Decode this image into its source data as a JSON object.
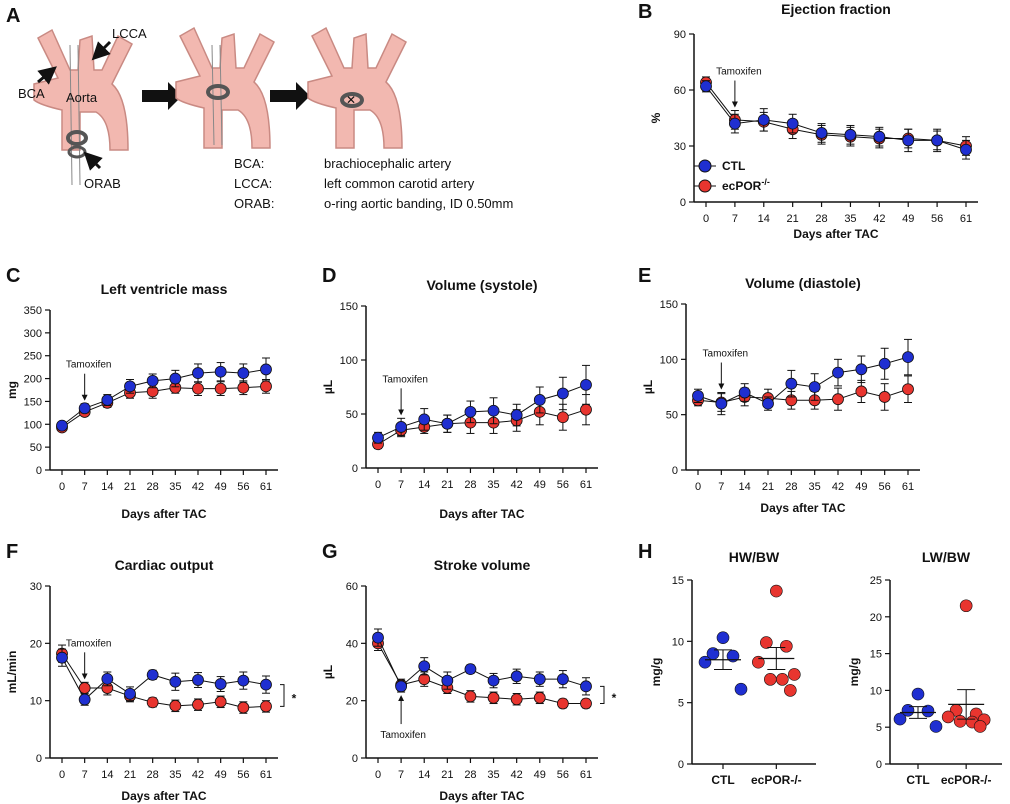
{
  "panel_letters": {
    "A": "A",
    "B": "B",
    "C": "C",
    "D": "D",
    "E": "E",
    "F": "F",
    "G": "G",
    "H": "H"
  },
  "colors": {
    "ctl": "#1f2fd1",
    "ecpor": "#e8352f",
    "ctl_light": "#2233cc",
    "ecpor_light": "#f07070",
    "artery": "#f2b8b0",
    "artery_stroke": "#c98a83"
  },
  "diagram": {
    "labels": {
      "lcca": "LCCA",
      "bca": "BCA",
      "aorta": "Aorta",
      "orab": "ORAB"
    },
    "abbreviations": [
      {
        "key": "BCA:",
        "value": "brachiocephalic artery"
      },
      {
        "key": "LCCA:",
        "value": "left common carotid artery"
      },
      {
        "key": "ORAB:",
        "value": "o-ring aortic banding, ID 0.50mm"
      }
    ]
  },
  "legend": {
    "ctl": "CTL",
    "ecpor_base": "ecPOR",
    "ecpor_sup": "-/-"
  },
  "chart_data": [
    {
      "id": "B",
      "type": "line",
      "title": "Ejection fraction",
      "ylabel": "%",
      "xlabel": "Days after TAC",
      "ylim": [
        0,
        90
      ],
      "yticks": [
        0,
        30,
        60,
        90
      ],
      "x": [
        0,
        7,
        14,
        21,
        28,
        35,
        42,
        49,
        56,
        61
      ],
      "annotation": {
        "text": "Tamoxifen",
        "x": 7,
        "placement": "above"
      },
      "series": [
        {
          "name": "CTL",
          "values": [
            62,
            42,
            44,
            42,
            37,
            36,
            35,
            33,
            33,
            28
          ],
          "errors": [
            3,
            5,
            6,
            5,
            5,
            5,
            5,
            6,
            6,
            5
          ]
        },
        {
          "name": "ecPOR-/-",
          "values": [
            64,
            44,
            43,
            39,
            36,
            35,
            34,
            34,
            33,
            30
          ],
          "errors": [
            3,
            5,
            5,
            5,
            5,
            5,
            5,
            5,
            5,
            5
          ]
        }
      ]
    },
    {
      "id": "C",
      "type": "line",
      "title": "Left ventricle mass",
      "ylabel": "mg",
      "xlabel": "Days after TAC",
      "ylim": [
        0,
        350
      ],
      "yticks": [
        0,
        50,
        100,
        150,
        200,
        250,
        300,
        350
      ],
      "x": [
        0,
        7,
        14,
        21,
        28,
        35,
        42,
        49,
        56,
        61
      ],
      "annotation": {
        "text": "Tamoxifen",
        "x": 7,
        "placement": "above"
      },
      "series": [
        {
          "name": "CTL",
          "values": [
            97,
            135,
            153,
            183,
            195,
            200,
            212,
            215,
            212,
            220
          ],
          "errors": [
            5,
            10,
            12,
            15,
            15,
            18,
            20,
            20,
            20,
            25
          ]
        },
        {
          "name": "ecPOR-/-",
          "values": [
            93,
            127,
            147,
            169,
            172,
            180,
            178,
            178,
            180,
            183
          ],
          "errors": [
            5,
            8,
            10,
            12,
            15,
            12,
            15,
            15,
            15,
            15
          ]
        }
      ]
    },
    {
      "id": "D",
      "type": "line",
      "title": "Volume (systole)",
      "ylabel": "µL",
      "xlabel": "Days after TAC",
      "ylim": [
        0,
        150
      ],
      "yticks": [
        0,
        50,
        100,
        150
      ],
      "x": [
        0,
        7,
        14,
        21,
        28,
        35,
        42,
        49,
        56,
        61
      ],
      "annotation": {
        "text": "Tamoxifen",
        "x": 7,
        "placement": "above"
      },
      "series": [
        {
          "name": "CTL",
          "values": [
            28,
            38,
            45,
            41,
            52,
            53,
            49,
            63,
            69,
            77
          ],
          "errors": [
            5,
            8,
            10,
            8,
            10,
            12,
            10,
            12,
            15,
            18
          ]
        },
        {
          "name": "ecPOR-/-",
          "values": [
            22,
            35,
            38,
            41,
            42,
            42,
            44,
            52,
            47,
            54
          ],
          "errors": [
            4,
            6,
            6,
            8,
            10,
            10,
            10,
            12,
            12,
            14
          ]
        }
      ]
    },
    {
      "id": "E",
      "type": "line",
      "title": "Volume (diastole)",
      "ylabel": "µL",
      "xlabel": "Days after TAC",
      "ylim": [
        0,
        150
      ],
      "yticks": [
        0,
        50,
        100,
        150
      ],
      "x": [
        0,
        7,
        14,
        21,
        28,
        35,
        42,
        49,
        56,
        61
      ],
      "annotation": {
        "text": "Tamoxifen",
        "x": 7,
        "placement": "above"
      },
      "series": [
        {
          "name": "CTL",
          "values": [
            67,
            60,
            70,
            60,
            78,
            75,
            88,
            91,
            96,
            102
          ],
          "errors": [
            6,
            10,
            8,
            6,
            12,
            12,
            12,
            12,
            14,
            16
          ]
        },
        {
          "name": "ecPOR-/-",
          "values": [
            63,
            61,
            66,
            65,
            63,
            63,
            64,
            71,
            66,
            73
          ],
          "errors": [
            5,
            8,
            8,
            8,
            8,
            8,
            10,
            10,
            12,
            12
          ]
        }
      ]
    },
    {
      "id": "F",
      "type": "line",
      "title": "Cardiac output",
      "ylabel": "mL/min",
      "xlabel": "Days after TAC",
      "ylim": [
        0,
        30
      ],
      "yticks": [
        0,
        10,
        20,
        30
      ],
      "x": [
        0,
        7,
        14,
        21,
        28,
        35,
        42,
        49,
        56,
        61
      ],
      "annotation": {
        "text": "Tamoxifen",
        "x": 7,
        "placement": "above"
      },
      "significance": "*",
      "series": [
        {
          "name": "CTL",
          "values": [
            17.5,
            10.2,
            13.8,
            11.2,
            14.5,
            13.3,
            13.6,
            12.9,
            13.5,
            12.8
          ],
          "errors": [
            1.5,
            1,
            1.2,
            1.2,
            0.8,
            1.5,
            1.3,
            1.3,
            1.5,
            1.5
          ]
        },
        {
          "name": "ecPOR-/-",
          "values": [
            18.2,
            12.2,
            12.2,
            10.8,
            9.7,
            9.1,
            9.3,
            9.8,
            8.8,
            9.0
          ],
          "errors": [
            1.5,
            1,
            1.2,
            1,
            0.8,
            1,
            1,
            1,
            1,
            1
          ]
        }
      ]
    },
    {
      "id": "G",
      "type": "line",
      "title": "Stroke volume",
      "ylabel": "µL",
      "xlabel": "Days after TAC",
      "ylim": [
        0,
        60
      ],
      "yticks": [
        0,
        20,
        40,
        60
      ],
      "x": [
        0,
        7,
        14,
        21,
        28,
        35,
        42,
        49,
        56,
        61
      ],
      "annotation": {
        "text": "Tamoxifen",
        "x": 7,
        "placement": "below"
      },
      "significance": "*",
      "series": [
        {
          "name": "CTL",
          "values": [
            42,
            25,
            32,
            27,
            31,
            27,
            28.5,
            27.5,
            27.5,
            25
          ],
          "errors": [
            3,
            2,
            3,
            3,
            1.5,
            2.5,
            2.5,
            2.5,
            3,
            3
          ]
        },
        {
          "name": "ecPOR-/-",
          "values": [
            40,
            25.5,
            27.5,
            24.5,
            21.5,
            21,
            20.5,
            21,
            19,
            19
          ],
          "errors": [
            2.5,
            2,
            2.5,
            2,
            2,
            2,
            2,
            2,
            1.5,
            1.5
          ]
        }
      ]
    },
    {
      "id": "H1",
      "type": "scatter",
      "title": "HW/BW",
      "ylabel": "mg/g",
      "xlabel": "",
      "ylim": [
        0,
        15
      ],
      "yticks": [
        0,
        5,
        10,
        15
      ],
      "categories": [
        "CTL",
        "ecPOR-/-"
      ],
      "groups": [
        {
          "name": "CTL",
          "points": [
            10.3,
            9.0,
            8.8,
            8.3,
            6.1
          ],
          "mean": 8.5,
          "sem": 0.8
        },
        {
          "name": "ecPOR-/-",
          "points": [
            14.1,
            9.9,
            9.6,
            8.3,
            7.3,
            6.9,
            6.9,
            6.0
          ],
          "mean": 8.6,
          "sem": 0.9
        }
      ]
    },
    {
      "id": "H2",
      "type": "scatter",
      "title": "LW/BW",
      "ylabel": "mg/g",
      "xlabel": "",
      "ylim": [
        0,
        25
      ],
      "yticks": [
        0,
        5,
        10,
        15,
        20,
        25
      ],
      "categories": [
        "CTL",
        "ecPOR-/-"
      ],
      "groups": [
        {
          "name": "CTL",
          "points": [
            9.5,
            7.3,
            7.2,
            6.1,
            5.1
          ],
          "mean": 7.0,
          "sem": 0.8
        },
        {
          "name": "ecPOR-/-",
          "points": [
            21.5,
            7.3,
            6.8,
            6.4,
            6.0,
            5.8,
            5.7,
            5.1
          ],
          "mean": 8.1,
          "sem": 2.0
        }
      ]
    }
  ]
}
